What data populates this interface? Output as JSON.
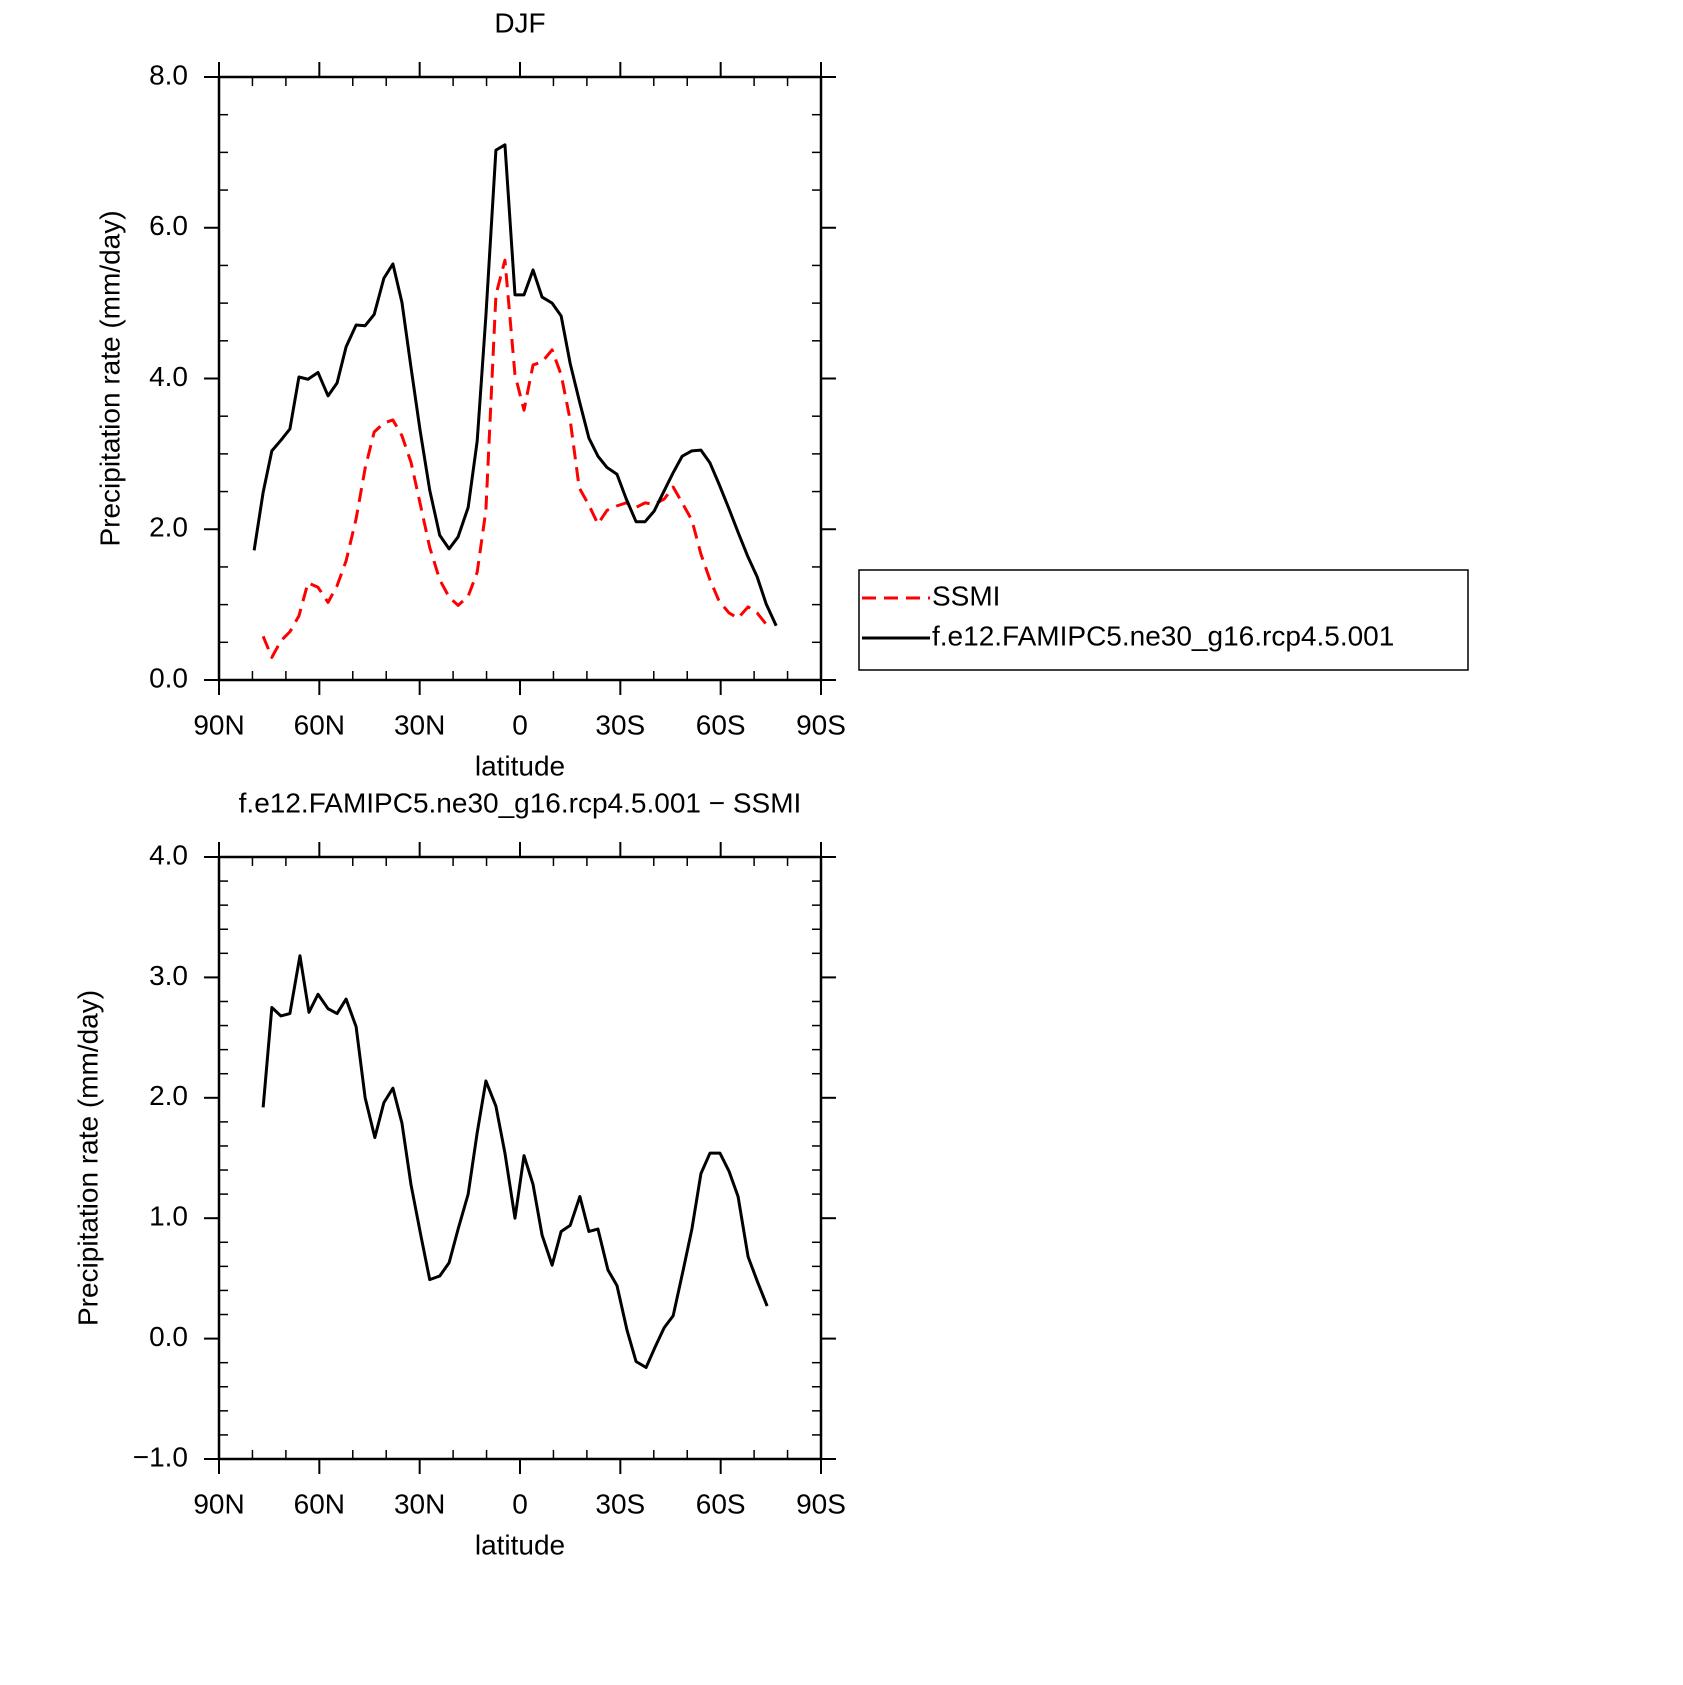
{
  "chart_data": [
    {
      "type": "line",
      "title": "DJF",
      "xlabel": "latitude",
      "ylabel": "Precipitation rate (mm/day)",
      "x": [
        79.5,
        76.8,
        74.2,
        71.5,
        68.8,
        66.1,
        63.4,
        60.4,
        57.4,
        54.7,
        52.0,
        49.0,
        46.3,
        43.6,
        40.7,
        38.0,
        35.3,
        32.6,
        29.9,
        27.0,
        24.0,
        21.2,
        18.5,
        15.5,
        12.8,
        10.2,
        7.2,
        4.5,
        1.5,
        -1.2,
        -3.9,
        -6.6,
        -9.6,
        -12.3,
        -15.0,
        -17.7,
        -20.6,
        -23.3,
        -26.0,
        -29.0,
        -31.7,
        -34.7,
        -37.4,
        -40.1,
        -43.1,
        -45.8,
        -48.5,
        -51.4,
        -54.1,
        -56.8,
        -59.5,
        -62.5,
        -65.2,
        -68.2,
        -70.9,
        -73.6,
        -76.6
      ],
      "series": [
        {
          "name": "SSMI",
          "color": "#ff0000",
          "linestyle": "dashed",
          "values": [
            null,
            0.58,
            0.3,
            0.52,
            0.64,
            0.85,
            1.29,
            1.23,
            1.03,
            1.25,
            1.58,
            2.14,
            2.81,
            3.29,
            3.41,
            3.45,
            3.24,
            2.89,
            2.35,
            1.76,
            1.33,
            1.1,
            0.99,
            1.11,
            1.43,
            2.25,
            5.11,
            5.57,
            4.05,
            3.58,
            4.18,
            4.22,
            4.38,
            4.05,
            3.45,
            2.55,
            2.32,
            2.07,
            2.25,
            2.31,
            2.35,
            2.29,
            2.35,
            2.33,
            2.4,
            2.56,
            2.35,
            2.12,
            1.67,
            1.33,
            1.05,
            0.89,
            0.82,
            0.97,
            0.89,
            0.74,
            null
          ]
        },
        {
          "name": "f.e12.FAMIPC5.ne30_g16.rcp4.5.001",
          "color": "#000000",
          "linestyle": "solid",
          "values": [
            1.72,
            2.49,
            3.04,
            3.18,
            3.33,
            4.02,
            3.99,
            4.08,
            3.77,
            3.94,
            4.42,
            4.71,
            4.7,
            4.85,
            5.33,
            5.52,
            5.01,
            4.15,
            3.32,
            2.52,
            1.92,
            1.74,
            1.9,
            2.29,
            3.17,
            4.83,
            7.03,
            7.1,
            5.11,
            5.11,
            5.44,
            5.08,
            5.0,
            4.83,
            4.2,
            3.71,
            3.21,
            2.97,
            2.82,
            2.73,
            2.41,
            2.1,
            2.1,
            2.24,
            2.51,
            2.75,
            2.97,
            3.04,
            3.05,
            2.88,
            2.6,
            2.27,
            1.96,
            1.63,
            1.37,
            1.01,
            0.72
          ]
        }
      ],
      "xlim": [
        90,
        -90
      ],
      "xticks": [
        {
          "value": 90,
          "label": "90N"
        },
        {
          "value": 60,
          "label": "60N"
        },
        {
          "value": 30,
          "label": "30N"
        },
        0,
        {
          "value": -30,
          "label": "30S"
        },
        {
          "value": -60,
          "label": "60S"
        },
        {
          "value": -90,
          "label": "90S"
        }
      ],
      "ylim": [
        0,
        8
      ],
      "yticks": [
        {
          "value": 0,
          "label": "0.0"
        },
        {
          "value": 2,
          "label": "2.0"
        },
        {
          "value": 4,
          "label": "4.0"
        },
        {
          "value": 6,
          "label": "6.0"
        },
        {
          "value": 8,
          "label": "8.0"
        }
      ],
      "legend": "right"
    },
    {
      "type": "line",
      "title": "f.e12.FAMIPC5.ne30_g16.rcp4.5.001 − SSMI",
      "xlabel": "latitude",
      "ylabel": "Precipitation rate (mm/day)",
      "x": [
        76.8,
        74.2,
        71.5,
        68.8,
        65.8,
        63.1,
        60.4,
        57.4,
        54.7,
        52.0,
        49.0,
        46.3,
        43.4,
        40.7,
        38.0,
        35.3,
        32.6,
        29.6,
        27.0,
        24.0,
        21.2,
        18.5,
        15.5,
        12.8,
        10.2,
        7.2,
        4.5,
        1.5,
        -1.2,
        -3.9,
        -6.6,
        -9.6,
        -12.3,
        -15.0,
        -17.9,
        -20.6,
        -23.3,
        -26.3,
        -29.0,
        -32.0,
        -34.7,
        -37.7,
        -40.4,
        -43.1,
        -45.8,
        -48.8,
        -51.4,
        -54.1,
        -56.8,
        -59.8,
        -62.5,
        -65.2,
        -68.2,
        -70.9,
        -73.9
      ],
      "series": [
        {
          "color": "#000000",
          "linestyle": "solid",
          "values": [
            1.92,
            2.75,
            2.68,
            2.7,
            3.18,
            2.71,
            2.86,
            2.74,
            2.7,
            2.82,
            2.59,
            2.0,
            1.67,
            1.96,
            2.08,
            1.79,
            1.28,
            0.85,
            0.49,
            0.52,
            0.63,
            0.91,
            1.2,
            1.71,
            2.14,
            1.93,
            1.54,
            1.0,
            1.52,
            1.28,
            0.86,
            0.61,
            0.89,
            0.94,
            1.18,
            0.89,
            0.91,
            0.57,
            0.44,
            0.07,
            -0.19,
            -0.24,
            -0.07,
            0.09,
            0.19,
            0.57,
            0.91,
            1.37,
            1.54,
            1.54,
            1.39,
            1.18,
            0.68,
            0.48,
            0.27
          ]
        }
      ],
      "xlim": [
        90,
        -90
      ],
      "xticks": [
        {
          "value": 90,
          "label": "90N"
        },
        {
          "value": 60,
          "label": "60N"
        },
        {
          "value": 30,
          "label": "30N"
        },
        0,
        {
          "value": -30,
          "label": "30S"
        },
        {
          "value": -60,
          "label": "60S"
        },
        {
          "value": -90,
          "label": "90S"
        }
      ],
      "ylim": [
        -1,
        4
      ],
      "yticks": [
        {
          "value": -1,
          "label": "−1.0"
        },
        {
          "value": 0,
          "label": "0.0"
        },
        {
          "value": 1,
          "label": "1.0"
        },
        {
          "value": 2,
          "label": "2.0"
        },
        {
          "value": 3,
          "label": "3.0"
        },
        {
          "value": 4,
          "label": "4.0"
        }
      ]
    }
  ]
}
